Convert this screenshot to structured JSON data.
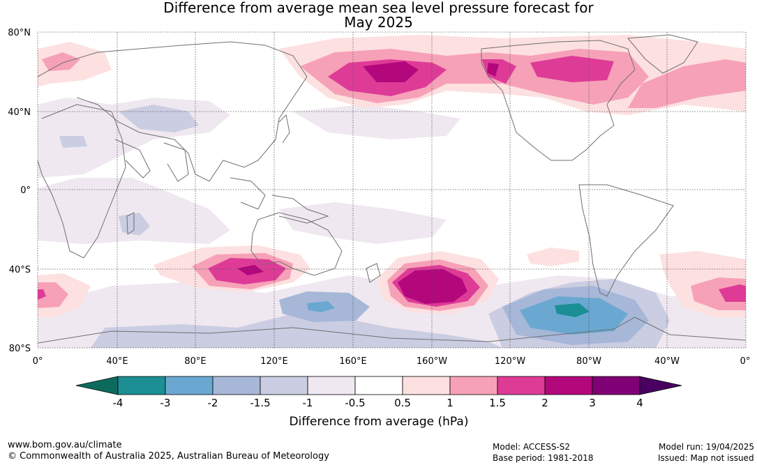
{
  "title": {
    "line1": "Difference from average mean sea level pressure forecast for",
    "line2": "May 2025"
  },
  "map": {
    "projection": "equirectangular, Pacific-centred",
    "lat_labels": [
      "80°N",
      "40°N",
      "0°",
      "40°S",
      "80°S"
    ],
    "lon_labels": [
      "0°",
      "40°E",
      "80°E",
      "120°E",
      "160°E",
      "160°W",
      "120°W",
      "80°W",
      "40°W",
      "0°"
    ],
    "gridlines": true
  },
  "colorbar": {
    "title": "Difference from average (hPa)",
    "tick_labels": [
      "-4",
      "-3",
      "-2",
      "-1.5",
      "-1",
      "-0.5",
      "0.5",
      "1",
      "1.5",
      "2",
      "3",
      "4"
    ],
    "colors": [
      "#1b8f94",
      "#6aa8d1",
      "#a6b7d8",
      "#cbcde2",
      "#efe8f0",
      "#ffffff",
      "#fde0e0",
      "#f6a1b8",
      "#de3b97",
      "#b3077c",
      "#800075"
    ],
    "extend_low_color": "#0d6b5e",
    "extend_high_color": "#4a0060"
  },
  "footer": {
    "url": "www.bom.gov.au/climate",
    "copyright": "© Commonwealth of Australia 2025, Australian Bureau of Meteorology",
    "model": "Model: ACCESS-S2",
    "base_period": "Base period: 1981-2018",
    "model_run": "Model run: 19/04/2025",
    "issued": "Issued: Map not issued"
  }
}
